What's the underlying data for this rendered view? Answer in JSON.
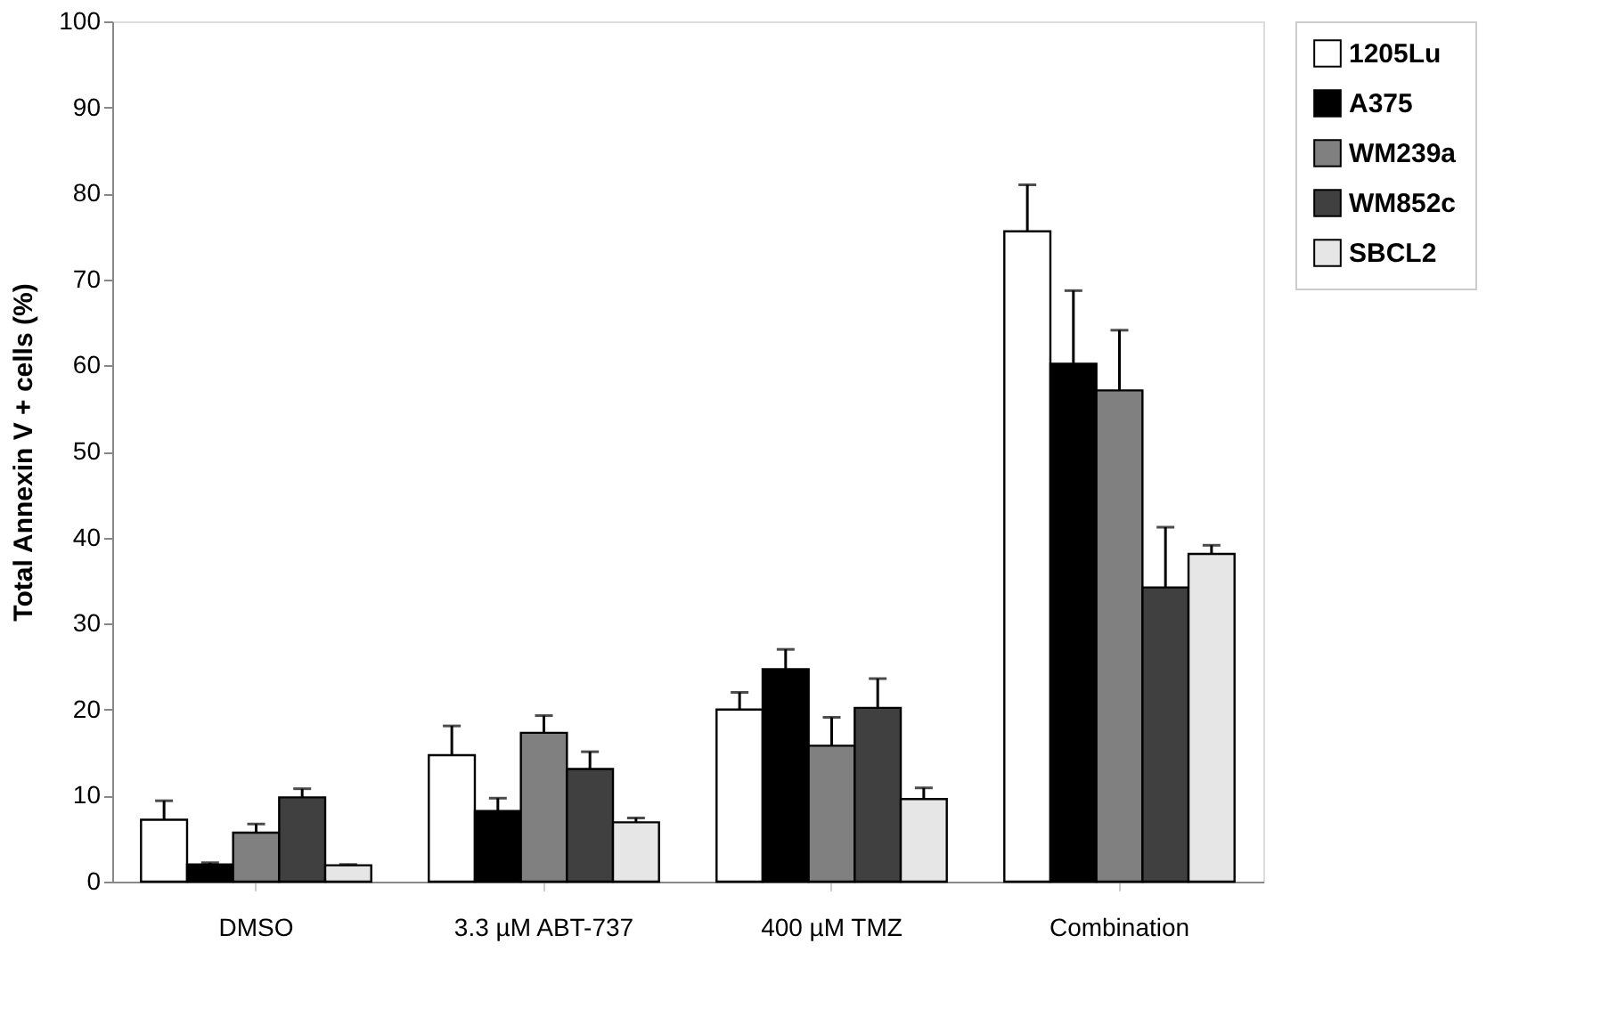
{
  "chart_data": {
    "type": "bar",
    "ylabel": "Total Annexin V + cells (%)",
    "categories": [
      "DMSO",
      "3.3 µM ABT-737",
      "400 µM TMZ",
      "Combination"
    ],
    "series": [
      {
        "name": "1205Lu",
        "color": "#ffffff",
        "values": [
          7.2,
          14.7,
          20.0,
          75.6
        ],
        "errors": [
          [
            7.2,
            9.4
          ],
          [
            14.7,
            18.1
          ],
          [
            20.0,
            22.0
          ],
          [
            75.6,
            81.0
          ]
        ]
      },
      {
        "name": "A375",
        "color": "#000000",
        "values": [
          2.0,
          8.2,
          24.7,
          60.2
        ],
        "errors": [
          [
            2.0,
            2.2
          ],
          [
            8.2,
            9.7
          ],
          [
            24.7,
            27.0
          ],
          [
            60.2,
            68.7
          ]
        ]
      },
      {
        "name": "WM239a",
        "color": "#808080",
        "values": [
          5.7,
          17.3,
          15.8,
          57.1
        ],
        "errors": [
          [
            5.7,
            6.7
          ],
          [
            17.3,
            19.3
          ],
          [
            15.8,
            19.1
          ],
          [
            57.1,
            64.1
          ]
        ]
      },
      {
        "name": "WM852c",
        "color": "#404040",
        "values": [
          9.8,
          13.1,
          20.2,
          34.2
        ],
        "errors": [
          [
            9.8,
            10.8
          ],
          [
            13.1,
            15.1
          ],
          [
            20.2,
            23.6
          ],
          [
            34.2,
            41.2
          ]
        ]
      },
      {
        "name": "SBCL2",
        "color": "#e6e6e6",
        "values": [
          1.9,
          6.9,
          9.6,
          38.1
        ],
        "errors": [
          [
            1.9,
            2.0
          ],
          [
            6.9,
            7.4
          ],
          [
            9.6,
            10.9
          ],
          [
            38.1,
            39.1
          ]
        ]
      }
    ],
    "ylim": [
      0,
      100
    ],
    "yticks": [
      0,
      10,
      20,
      30,
      40,
      50,
      60,
      70,
      80,
      90,
      100
    ],
    "grid": false,
    "legend": "right"
  }
}
